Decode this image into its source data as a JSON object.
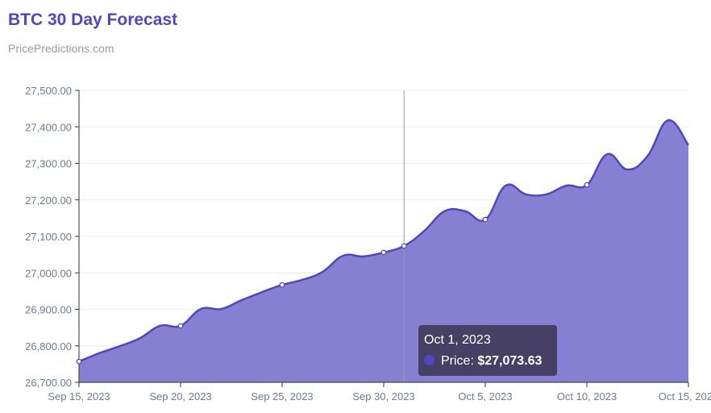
{
  "header": {
    "title": "BTC 30 Day Forecast",
    "subtitle": "PricePredictions.com"
  },
  "tooltip": {
    "date": "Oct 1, 2023",
    "label": "Price:",
    "value": "$27,073.63"
  },
  "colors": {
    "line": "#4f46c0",
    "fill": "#8780d2",
    "title": "#5046c4"
  },
  "chart_data": {
    "type": "area",
    "title": "BTC 30 Day Forecast",
    "xlabel": "",
    "ylabel": "",
    "ylim": [
      26700,
      27500
    ],
    "grid": true,
    "yticks": [
      "27,500.00",
      "27,400.00",
      "27,300.00",
      "27,200.00",
      "27,100.00",
      "27,000.00",
      "26,900.00",
      "26,800.00",
      "26,700.00"
    ],
    "xticks": [
      "Sep 15, 2023",
      "Sep 20, 2023",
      "Sep 25, 2023",
      "Sep 30, 2023",
      "Oct 5, 2023",
      "Oct 10, 2023",
      "Oct 15, 2023"
    ],
    "x": [
      "2023-09-15",
      "2023-09-16",
      "2023-09-17",
      "2023-09-18",
      "2023-09-19",
      "2023-09-20",
      "2023-09-21",
      "2023-09-22",
      "2023-09-23",
      "2023-09-24",
      "2023-09-25",
      "2023-09-26",
      "2023-09-27",
      "2023-09-28",
      "2023-09-29",
      "2023-09-30",
      "2023-10-01",
      "2023-10-02",
      "2023-10-03",
      "2023-10-04",
      "2023-10-05",
      "2023-10-06",
      "2023-10-07",
      "2023-10-08",
      "2023-10-09",
      "2023-10-10",
      "2023-10-11",
      "2023-10-12",
      "2023-10-13",
      "2023-10-14",
      "2023-10-15"
    ],
    "series": [
      {
        "name": "Price",
        "values": [
          26757,
          26780,
          26799,
          26821,
          26855,
          26855,
          26901,
          26901,
          26925,
          26947,
          26967,
          26981,
          27003,
          27047,
          27045,
          27056,
          27073.63,
          27115,
          27169,
          27169,
          27146,
          27239,
          27215,
          27215,
          27239,
          27241,
          27325,
          27283,
          27321,
          27418,
          27350
        ]
      }
    ],
    "highlighted": "2023-10-01"
  }
}
